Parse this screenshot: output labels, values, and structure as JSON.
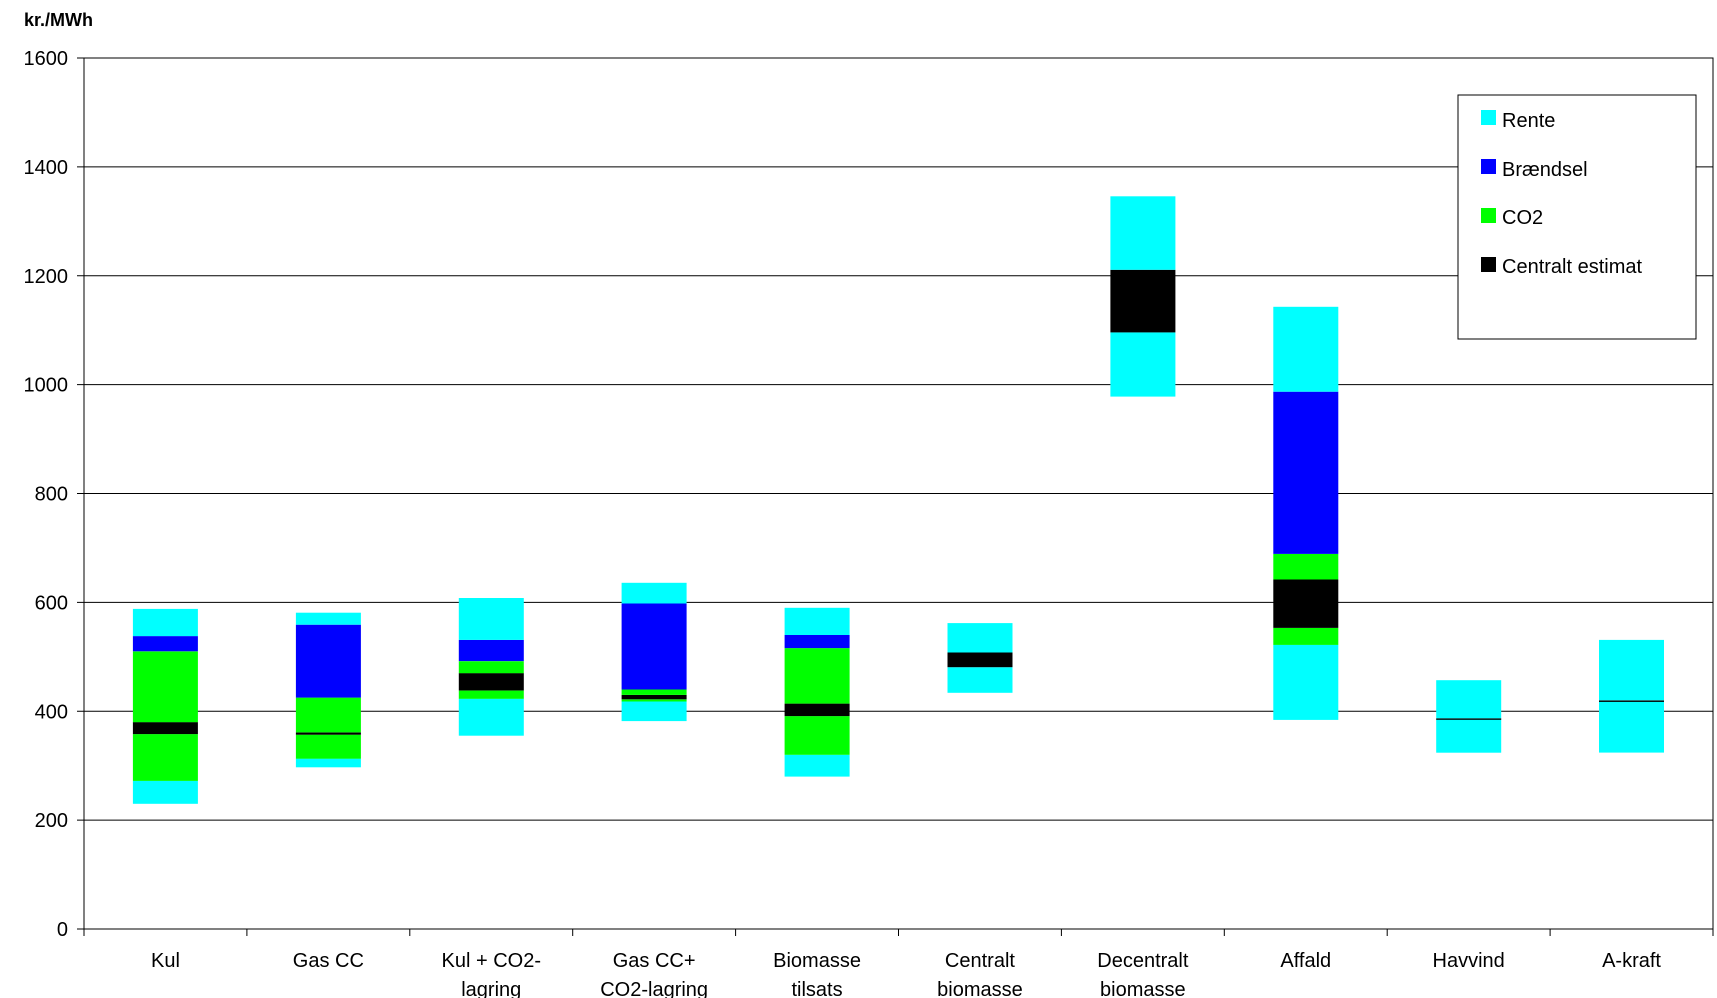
{
  "chart_data": {
    "type": "bar",
    "subtype": "floating-range-stacked",
    "ylabel": "kr./MWh",
    "ylim": [
      0,
      1600
    ],
    "yticks": [
      0,
      200,
      400,
      600,
      800,
      1000,
      1200,
      1400,
      1600
    ],
    "grid": true,
    "legend_position": "top-right",
    "categories": [
      [
        "Kul"
      ],
      [
        "Gas CC"
      ],
      [
        "Kul    + CO2-",
        "lagring"
      ],
      [
        "Gas CC+",
        "CO2-lagring"
      ],
      [
        "Biomasse",
        "tilsats"
      ],
      [
        "Centralt",
        "biomasse"
      ],
      [
        "Decentralt",
        "biomasse"
      ],
      [
        "Affald"
      ],
      [
        "Havvind"
      ],
      [
        "A-kraft"
      ]
    ],
    "series": [
      {
        "name": "Rente",
        "color": "#00FFFF"
      },
      {
        "name": "Brændsel",
        "color": "#0000FF"
      },
      {
        "name": "CO2",
        "color": "#00FF00"
      },
      {
        "name": "Centralt estimat",
        "color": "#000000"
      }
    ],
    "segments": [
      [
        {
          "series": "Rente",
          "from": 230,
          "to": 272
        },
        {
          "series": "CO2",
          "from": 272,
          "to": 358
        },
        {
          "series": "Centralt estimat",
          "from": 358,
          "to": 380
        },
        {
          "series": "CO2",
          "from": 380,
          "to": 510
        },
        {
          "series": "Brændsel",
          "from": 510,
          "to": 538
        },
        {
          "series": "Rente",
          "from": 538,
          "to": 588
        }
      ],
      [
        {
          "series": "Rente",
          "from": 297,
          "to": 313
        },
        {
          "series": "CO2",
          "from": 313,
          "to": 357
        },
        {
          "series": "Centralt estimat",
          "from": 357,
          "to": 361
        },
        {
          "series": "CO2",
          "from": 361,
          "to": 425
        },
        {
          "series": "Brændsel",
          "from": 425,
          "to": 559
        },
        {
          "series": "Rente",
          "from": 559,
          "to": 581
        }
      ],
      [
        {
          "series": "Rente",
          "from": 355,
          "to": 423
        },
        {
          "series": "CO2",
          "from": 423,
          "to": 438
        },
        {
          "series": "Centralt estimat",
          "from": 438,
          "to": 470
        },
        {
          "series": "CO2",
          "from": 470,
          "to": 492
        },
        {
          "series": "Brændsel",
          "from": 492,
          "to": 531
        },
        {
          "series": "Rente",
          "from": 531,
          "to": 608
        }
      ],
      [
        {
          "series": "Rente",
          "from": 382,
          "to": 418
        },
        {
          "series": "CO2",
          "from": 418,
          "to": 422
        },
        {
          "series": "Centralt estimat",
          "from": 422,
          "to": 430
        },
        {
          "series": "CO2",
          "from": 430,
          "to": 440
        },
        {
          "series": "Brændsel",
          "from": 440,
          "to": 598
        },
        {
          "series": "Rente",
          "from": 598,
          "to": 636
        }
      ],
      [
        {
          "series": "Rente",
          "from": 280,
          "to": 320
        },
        {
          "series": "CO2",
          "from": 320,
          "to": 391
        },
        {
          "series": "Centralt estimat",
          "from": 391,
          "to": 414
        },
        {
          "series": "CO2",
          "from": 414,
          "to": 516
        },
        {
          "series": "Brændsel",
          "from": 516,
          "to": 540
        },
        {
          "series": "Rente",
          "from": 540,
          "to": 590
        }
      ],
      [
        {
          "series": "Rente",
          "from": 434,
          "to": 481
        },
        {
          "series": "Centralt estimat",
          "from": 481,
          "to": 508
        },
        {
          "series": "Rente",
          "from": 508,
          "to": 562
        }
      ],
      [
        {
          "series": "Rente",
          "from": 978,
          "to": 1096
        },
        {
          "series": "Centralt estimat",
          "from": 1096,
          "to": 1211
        },
        {
          "series": "Rente",
          "from": 1211,
          "to": 1346
        }
      ],
      [
        {
          "series": "Rente",
          "from": 384,
          "to": 522
        },
        {
          "series": "CO2",
          "from": 522,
          "to": 553
        },
        {
          "series": "Centralt estimat",
          "from": 553,
          "to": 642
        },
        {
          "series": "CO2",
          "from": 642,
          "to": 689
        },
        {
          "series": "Brændsel",
          "from": 689,
          "to": 987
        },
        {
          "series": "Rente",
          "from": 987,
          "to": 1143
        }
      ],
      [
        {
          "series": "Rente",
          "from": 324,
          "to": 386
        },
        {
          "series": "Centralt estimat",
          "from": 385,
          "to": 387
        },
        {
          "series": "Rente",
          "from": 387,
          "to": 457
        }
      ],
      [
        {
          "series": "Rente",
          "from": 324,
          "to": 419
        },
        {
          "series": "Centralt estimat",
          "from": 418,
          "to": 420
        },
        {
          "series": "Rente",
          "from": 420,
          "to": 531
        }
      ]
    ]
  }
}
